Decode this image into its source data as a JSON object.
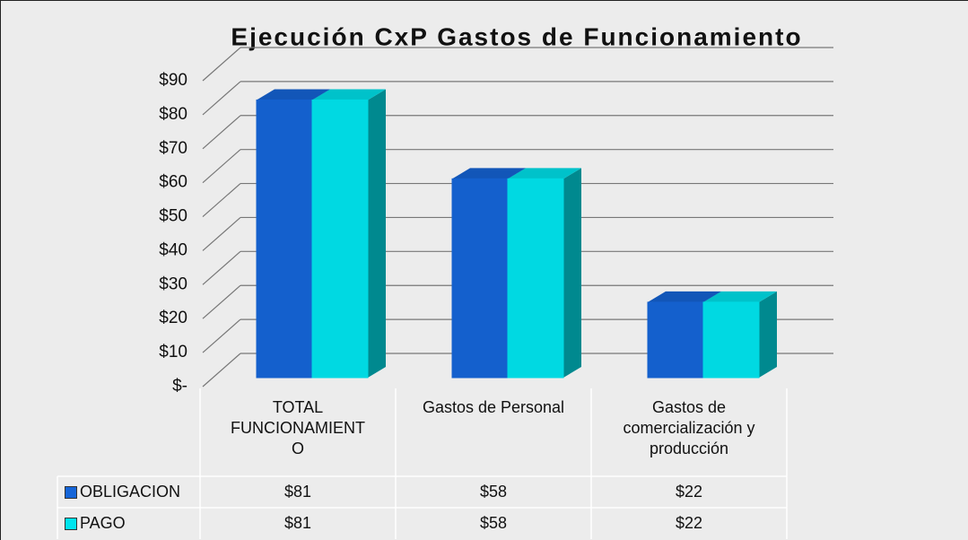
{
  "chart_data": {
    "type": "bar3d",
    "title": "Ejecución CxP Gastos de Funcionamiento",
    "categories": [
      "TOTAL FUNCIONAMIENTO",
      "Gastos de Personal",
      "Gastos de comercialización y producción"
    ],
    "series": [
      {
        "name": "OBLIGACION",
        "color": "#1565d8",
        "values": [
          81,
          58,
          22
        ],
        "value_labels": [
          "$81",
          "$58",
          "$22"
        ]
      },
      {
        "name": "PAGO",
        "color": "#00e4ee",
        "values": [
          81,
          58,
          22
        ],
        "value_labels": [
          "$81",
          "$58",
          "$22"
        ]
      }
    ],
    "ylim": [
      0,
      90
    ],
    "yticks": [
      {
        "value": 0,
        "label": "$-"
      },
      {
        "value": 10,
        "label": "$10"
      },
      {
        "value": 20,
        "label": "$20"
      },
      {
        "value": 30,
        "label": "$30"
      },
      {
        "value": 40,
        "label": "$40"
      },
      {
        "value": 50,
        "label": "$50"
      },
      {
        "value": 60,
        "label": "$60"
      },
      {
        "value": 70,
        "label": "$70"
      },
      {
        "value": 80,
        "label": "$80"
      },
      {
        "value": 90,
        "label": "$90"
      }
    ],
    "grid": true,
    "legend": "table"
  }
}
